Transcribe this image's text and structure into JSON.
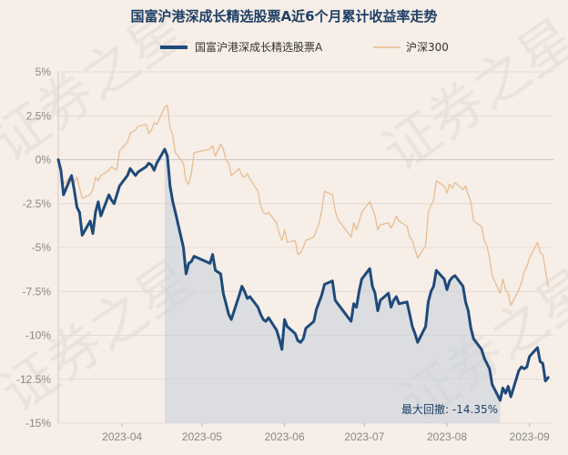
{
  "chart_data": {
    "type": "line",
    "title": "国富沪港深成长精选股票A近6个月累计收益率走势",
    "legend": {
      "placement": "top"
    },
    "grid": true,
    "y_unit": "%",
    "y_ticks": [
      5,
      2.5,
      0,
      -2.5,
      -5,
      -7.5,
      -10,
      -12.5,
      -15
    ],
    "y_tick_labels": [
      "5%",
      "2.5%",
      "0%",
      "-2.5%",
      "-5%",
      "-7.5%",
      "-10%",
      "-12.5%",
      "-15%"
    ],
    "ylim": [
      -15,
      5
    ],
    "x_range": [
      "2023-03-08",
      "2023-09-10"
    ],
    "x_ticks": [
      "2023-04-01",
      "2023-05-01",
      "2023-06-01",
      "2023-07-01",
      "2023-08-01",
      "2023-09-01"
    ],
    "x_tick_labels": [
      "2023-04",
      "2023-05",
      "2023-06",
      "2023-07",
      "2023-08",
      "2023-09"
    ],
    "series": [
      {
        "name": "国富沪港深成长精选股票A",
        "color": "#1e4a7a",
        "points": [
          [
            "2023-03-08",
            0
          ],
          [
            "2023-03-09",
            -0.6
          ],
          [
            "2023-03-10",
            -2.0
          ],
          [
            "2023-03-13",
            -0.9
          ],
          [
            "2023-03-14",
            -1.7
          ],
          [
            "2023-03-15",
            -2.7
          ],
          [
            "2023-03-16",
            -3.0
          ],
          [
            "2023-03-17",
            -4.3
          ],
          [
            "2023-03-20",
            -3.5
          ],
          [
            "2023-03-21",
            -4.2
          ],
          [
            "2023-03-22",
            -3.0
          ],
          [
            "2023-03-23",
            -2.4
          ],
          [
            "2023-03-24",
            -3.2
          ],
          [
            "2023-03-27",
            -2.0
          ],
          [
            "2023-03-28",
            -2.3
          ],
          [
            "2023-03-29",
            -2.5
          ],
          [
            "2023-03-30",
            -2.0
          ],
          [
            "2023-03-31",
            -1.5
          ],
          [
            "2023-04-03",
            -0.9
          ],
          [
            "2023-04-04",
            -0.5
          ],
          [
            "2023-04-06",
            -0.9
          ],
          [
            "2023-04-07",
            -0.7
          ],
          [
            "2023-04-10",
            -0.4
          ],
          [
            "2023-04-11",
            -0.2
          ],
          [
            "2023-04-12",
            -0.3
          ],
          [
            "2023-04-13",
            -0.6
          ],
          [
            "2023-04-14",
            -0.2
          ],
          [
            "2023-04-17",
            0.6
          ],
          [
            "2023-04-18",
            0.2
          ],
          [
            "2023-04-19",
            -1.5
          ],
          [
            "2023-04-20",
            -2.4
          ],
          [
            "2023-04-21",
            -3.0
          ],
          [
            "2023-04-24",
            -5.0
          ],
          [
            "2023-04-25",
            -6.5
          ],
          [
            "2023-04-26",
            -5.9
          ],
          [
            "2023-04-27",
            -5.8
          ],
          [
            "2023-04-28",
            -5.5
          ],
          [
            "2023-05-04",
            -5.9
          ],
          [
            "2023-05-05",
            -5.4
          ],
          [
            "2023-05-06",
            -6.3
          ],
          [
            "2023-05-08",
            -6.5
          ],
          [
            "2023-05-09",
            -7.6
          ],
          [
            "2023-05-10",
            -8.2
          ],
          [
            "2023-05-11",
            -8.8
          ],
          [
            "2023-05-12",
            -9.1
          ],
          [
            "2023-05-15",
            -7.7
          ],
          [
            "2023-05-16",
            -7.2
          ],
          [
            "2023-05-17",
            -7.5
          ],
          [
            "2023-05-18",
            -7.9
          ],
          [
            "2023-05-19",
            -7.8
          ],
          [
            "2023-05-22",
            -8.4
          ],
          [
            "2023-05-23",
            -8.8
          ],
          [
            "2023-05-24",
            -9.1
          ],
          [
            "2023-05-25",
            -9.2
          ],
          [
            "2023-05-26",
            -9.0
          ],
          [
            "2023-05-29",
            -9.7
          ],
          [
            "2023-05-30",
            -10.2
          ],
          [
            "2023-05-31",
            -10.8
          ],
          [
            "2023-06-01",
            -9.1
          ],
          [
            "2023-06-02",
            -9.5
          ],
          [
            "2023-06-05",
            -9.9
          ],
          [
            "2023-06-06",
            -10.3
          ],
          [
            "2023-06-07",
            -10.4
          ],
          [
            "2023-06-08",
            -10.2
          ],
          [
            "2023-06-09",
            -9.6
          ],
          [
            "2023-06-12",
            -9.2
          ],
          [
            "2023-06-13",
            -8.5
          ],
          [
            "2023-06-14",
            -8.1
          ],
          [
            "2023-06-15",
            -7.7
          ],
          [
            "2023-06-16",
            -7.1
          ],
          [
            "2023-06-19",
            -6.9
          ],
          [
            "2023-06-20",
            -8.0
          ],
          [
            "2023-06-21",
            -8.2
          ],
          [
            "2023-06-26",
            -9.2
          ],
          [
            "2023-06-27",
            -8.2
          ],
          [
            "2023-06-28",
            -8.4
          ],
          [
            "2023-06-29",
            -7.5
          ],
          [
            "2023-06-30",
            -6.8
          ],
          [
            "2023-07-03",
            -6.2
          ],
          [
            "2023-07-04",
            -7.2
          ],
          [
            "2023-07-05",
            -7.6
          ],
          [
            "2023-07-06",
            -8.6
          ],
          [
            "2023-07-07",
            -8.0
          ],
          [
            "2023-07-10",
            -7.6
          ],
          [
            "2023-07-11",
            -8.4
          ],
          [
            "2023-07-12",
            -8.0
          ],
          [
            "2023-07-13",
            -7.8
          ],
          [
            "2023-07-14",
            -8.2
          ],
          [
            "2023-07-17",
            -8.1
          ],
          [
            "2023-07-18",
            -8.8
          ],
          [
            "2023-07-19",
            -9.5
          ],
          [
            "2023-07-20",
            -9.9
          ],
          [
            "2023-07-21",
            -10.4
          ],
          [
            "2023-07-24",
            -9.5
          ],
          [
            "2023-07-25",
            -8.1
          ],
          [
            "2023-07-26",
            -7.5
          ],
          [
            "2023-07-27",
            -7.2
          ],
          [
            "2023-07-28",
            -6.3
          ],
          [
            "2023-07-31",
            -6.8
          ],
          [
            "2023-08-01",
            -7.4
          ],
          [
            "2023-08-02",
            -6.9
          ],
          [
            "2023-08-03",
            -6.7
          ],
          [
            "2023-08-04",
            -6.6
          ],
          [
            "2023-08-07",
            -7.2
          ],
          [
            "2023-08-08",
            -8.1
          ],
          [
            "2023-08-09",
            -8.6
          ],
          [
            "2023-08-10",
            -9.6
          ],
          [
            "2023-08-11",
            -10.2
          ],
          [
            "2023-08-14",
            -10.8
          ],
          [
            "2023-08-15",
            -11.3
          ],
          [
            "2023-08-16",
            -11.6
          ],
          [
            "2023-08-17",
            -11.9
          ],
          [
            "2023-08-18",
            -12.8
          ],
          [
            "2023-08-21",
            -13.7
          ],
          [
            "2023-08-22",
            -13.0
          ],
          [
            "2023-08-23",
            -13.3
          ],
          [
            "2023-08-24",
            -12.9
          ],
          [
            "2023-08-25",
            -13.5
          ],
          [
            "2023-08-28",
            -12.0
          ],
          [
            "2023-08-29",
            -11.8
          ],
          [
            "2023-08-30",
            -11.9
          ],
          [
            "2023-08-31",
            -11.8
          ],
          [
            "2023-09-01",
            -11.2
          ],
          [
            "2023-09-04",
            -10.7
          ],
          [
            "2023-09-05",
            -11.5
          ],
          [
            "2023-09-06",
            -11.6
          ],
          [
            "2023-09-07",
            -12.6
          ],
          [
            "2023-09-08",
            -12.4
          ]
        ]
      },
      {
        "name": "沪深300",
        "color": "#e8b98a",
        "points": [
          [
            "2023-03-08",
            0
          ],
          [
            "2023-03-09",
            -0.5
          ],
          [
            "2023-03-10",
            -1.4
          ],
          [
            "2023-03-13",
            -0.9
          ],
          [
            "2023-03-14",
            -1.3
          ],
          [
            "2023-03-15",
            -1.0
          ],
          [
            "2023-03-16",
            -1.6
          ],
          [
            "2023-03-17",
            -2.2
          ],
          [
            "2023-03-20",
            -2.0
          ],
          [
            "2023-03-21",
            -1.7
          ],
          [
            "2023-03-22",
            -1.0
          ],
          [
            "2023-03-23",
            -1.2
          ],
          [
            "2023-03-24",
            -0.9
          ],
          [
            "2023-03-27",
            -0.6
          ],
          [
            "2023-03-28",
            -0.4
          ],
          [
            "2023-03-29",
            -0.5
          ],
          [
            "2023-03-30",
            -0.6
          ],
          [
            "2023-03-31",
            0.5
          ],
          [
            "2023-04-03",
            1.0
          ],
          [
            "2023-04-04",
            1.5
          ],
          [
            "2023-04-06",
            1.7
          ],
          [
            "2023-04-07",
            1.9
          ],
          [
            "2023-04-10",
            2.0
          ],
          [
            "2023-04-11",
            1.5
          ],
          [
            "2023-04-12",
            1.7
          ],
          [
            "2023-04-13",
            2.1
          ],
          [
            "2023-04-14",
            2.0
          ],
          [
            "2023-04-17",
            3.0
          ],
          [
            "2023-04-18",
            3.1
          ],
          [
            "2023-04-19",
            1.8
          ],
          [
            "2023-04-20",
            1.4
          ],
          [
            "2023-04-21",
            0.4
          ],
          [
            "2023-04-24",
            -0.2
          ],
          [
            "2023-04-25",
            -1.2
          ],
          [
            "2023-04-26",
            -1.4
          ],
          [
            "2023-04-27",
            -0.8
          ],
          [
            "2023-04-28",
            0.4
          ],
          [
            "2023-05-04",
            0.6
          ],
          [
            "2023-05-05",
            0.8
          ],
          [
            "2023-05-06",
            0.2
          ],
          [
            "2023-05-08",
            0.9
          ],
          [
            "2023-05-09",
            0.6
          ],
          [
            "2023-05-10",
            0.0
          ],
          [
            "2023-05-11",
            -0.2
          ],
          [
            "2023-05-12",
            -0.9
          ],
          [
            "2023-05-15",
            -0.5
          ],
          [
            "2023-05-16",
            -0.9
          ],
          [
            "2023-05-17",
            -1.0
          ],
          [
            "2023-05-18",
            -0.8
          ],
          [
            "2023-05-19",
            -1.1
          ],
          [
            "2023-05-22",
            -1.8
          ],
          [
            "2023-05-23",
            -2.6
          ],
          [
            "2023-05-24",
            -3.0
          ],
          [
            "2023-05-25",
            -3.1
          ],
          [
            "2023-05-26",
            -3.0
          ],
          [
            "2023-05-29",
            -3.6
          ],
          [
            "2023-05-30",
            -4.2
          ],
          [
            "2023-05-31",
            -4.6
          ],
          [
            "2023-06-01",
            -4.0
          ],
          [
            "2023-06-02",
            -4.7
          ],
          [
            "2023-06-05",
            -4.6
          ],
          [
            "2023-06-06",
            -5.4
          ],
          [
            "2023-06-07",
            -5.3
          ],
          [
            "2023-06-08",
            -5.0
          ],
          [
            "2023-06-09",
            -4.6
          ],
          [
            "2023-06-12",
            -4.4
          ],
          [
            "2023-06-13",
            -4.0
          ],
          [
            "2023-06-14",
            -3.6
          ],
          [
            "2023-06-15",
            -2.9
          ],
          [
            "2023-06-16",
            -1.8
          ],
          [
            "2023-06-19",
            -2.0
          ],
          [
            "2023-06-20",
            -2.9
          ],
          [
            "2023-06-21",
            -3.4
          ],
          [
            "2023-06-26",
            -4.4
          ],
          [
            "2023-06-27",
            -3.6
          ],
          [
            "2023-06-28",
            -4.0
          ],
          [
            "2023-06-29",
            -3.5
          ],
          [
            "2023-06-30",
            -3.0
          ],
          [
            "2023-07-03",
            -2.4
          ],
          [
            "2023-07-04",
            -2.8
          ],
          [
            "2023-07-05",
            -3.2
          ],
          [
            "2023-07-06",
            -4.0
          ],
          [
            "2023-07-07",
            -3.7
          ],
          [
            "2023-07-10",
            -3.6
          ],
          [
            "2023-07-11",
            -3.9
          ],
          [
            "2023-07-12",
            -3.6
          ],
          [
            "2023-07-13",
            -3.2
          ],
          [
            "2023-07-14",
            -3.5
          ],
          [
            "2023-07-17",
            -3.8
          ],
          [
            "2023-07-18",
            -4.4
          ],
          [
            "2023-07-19",
            -4.6
          ],
          [
            "2023-07-20",
            -5.1
          ],
          [
            "2023-07-21",
            -5.6
          ],
          [
            "2023-07-24",
            -4.9
          ],
          [
            "2023-07-25",
            -3.0
          ],
          [
            "2023-07-26",
            -2.6
          ],
          [
            "2023-07-27",
            -2.3
          ],
          [
            "2023-07-28",
            -1.2
          ],
          [
            "2023-07-31",
            -1.5
          ],
          [
            "2023-08-01",
            -1.9
          ],
          [
            "2023-08-02",
            -1.4
          ],
          [
            "2023-08-03",
            -1.6
          ],
          [
            "2023-08-04",
            -1.3
          ],
          [
            "2023-08-07",
            -1.7
          ],
          [
            "2023-08-08",
            -1.5
          ],
          [
            "2023-08-09",
            -2.0
          ],
          [
            "2023-08-10",
            -2.4
          ],
          [
            "2023-08-11",
            -3.5
          ],
          [
            "2023-08-14",
            -3.8
          ],
          [
            "2023-08-15",
            -4.6
          ],
          [
            "2023-08-16",
            -4.9
          ],
          [
            "2023-08-17",
            -5.6
          ],
          [
            "2023-08-18",
            -6.6
          ],
          [
            "2023-08-21",
            -7.6
          ],
          [
            "2023-08-22",
            -6.8
          ],
          [
            "2023-08-23",
            -7.4
          ],
          [
            "2023-08-24",
            -7.6
          ],
          [
            "2023-08-25",
            -8.3
          ],
          [
            "2023-08-28",
            -7.4
          ],
          [
            "2023-08-29",
            -7.0
          ],
          [
            "2023-08-30",
            -6.4
          ],
          [
            "2023-08-31",
            -6.1
          ],
          [
            "2023-09-01",
            -5.6
          ],
          [
            "2023-09-04",
            -4.7
          ],
          [
            "2023-09-05",
            -5.3
          ],
          [
            "2023-09-06",
            -5.4
          ],
          [
            "2023-09-07",
            -6.3
          ],
          [
            "2023-09-08",
            -7.2
          ]
        ]
      }
    ],
    "max_drawdown": {
      "label": "最大回撤: -14.35%",
      "start_date": "2023-04-17",
      "end_date": "2023-08-21",
      "fill_color": "#c5d0db"
    },
    "watermark": [
      "证券之星",
      "证券之星",
      "证券之星",
      "证券之星"
    ]
  }
}
